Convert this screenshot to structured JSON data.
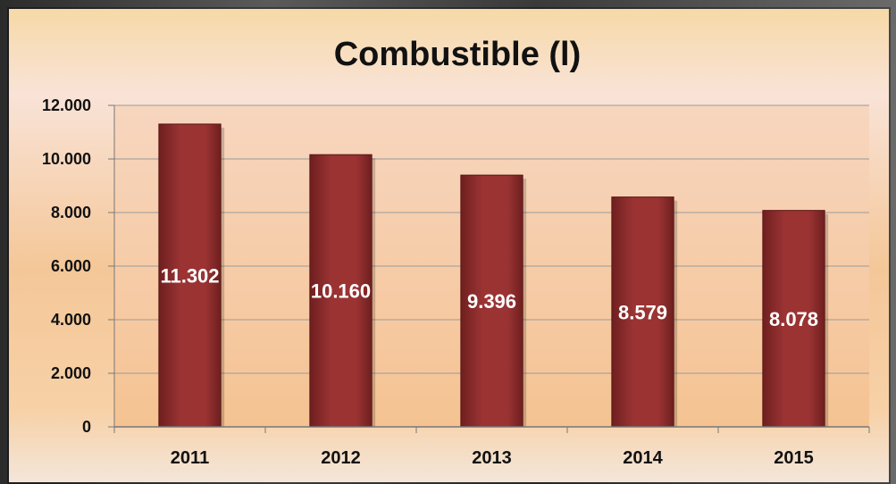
{
  "chart_data": {
    "type": "bar",
    "title": "Combustible (l)",
    "categories": [
      "2011",
      "2012",
      "2013",
      "2014",
      "2015"
    ],
    "values": [
      11302,
      10160,
      9396,
      8579,
      8078
    ],
    "value_labels": [
      "11.302",
      "10.160",
      "9.396",
      "8.579",
      "8.078"
    ],
    "ylim": [
      0,
      12000
    ],
    "yticks": [
      0,
      2000,
      4000,
      6000,
      8000,
      10000,
      12000
    ],
    "ytick_labels": [
      "0",
      "2.000",
      "4.000",
      "6.000",
      "8.000",
      "10.000",
      "12.000"
    ],
    "grid": true,
    "legend": "none",
    "colors": {
      "bar": "#9b3333",
      "bar_dark": "#6f1f1f",
      "grid": "#9a9a9a"
    }
  }
}
